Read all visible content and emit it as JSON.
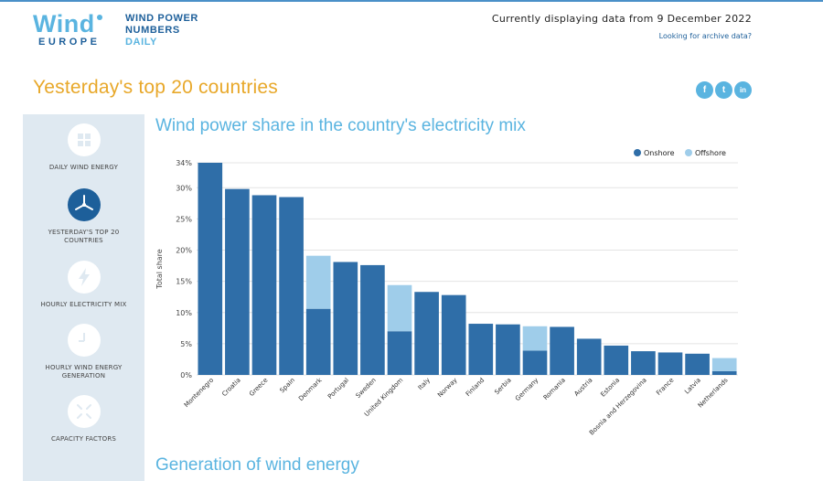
{
  "header": {
    "logo_wind": "Wind",
    "logo_europe": "EUROPE",
    "brand_line1": "WIND POWER",
    "brand_line2": "NUMBERS",
    "brand_line3": "DAILY",
    "displaying": "Currently displaying data from 9 December 2022",
    "archive_link": "Looking for archive data?"
  },
  "page_title": "Yesterday's top 20 countries",
  "social": [
    "f",
    "t",
    "in"
  ],
  "sidebar": {
    "items": [
      {
        "label": "DAILY WIND ENERGY",
        "icon": "grid-icon"
      },
      {
        "label": "YESTERDAY'S TOP 20 COUNTRIES",
        "icon": "turbine-icon",
        "active": true
      },
      {
        "label": "HOURLY ELECTRICITY MIX",
        "icon": "lightning-icon"
      },
      {
        "label": "HOURLY WIND ENERGY GENERATION",
        "icon": "clock-icon"
      },
      {
        "label": "CAPACITY FACTORS",
        "icon": "arrows-icon"
      }
    ]
  },
  "chart_title": "Wind power share in the country's electricity mix",
  "generation_title": "Generation of wind energy",
  "colors": {
    "onshore": "#2f6ea8",
    "offshore": "#9fcdea",
    "accent": "#5ab4e0",
    "title": "#e8a82a"
  },
  "chart_data": {
    "type": "bar",
    "stacked": true,
    "ylabel": "Total share",
    "ylim": [
      0,
      34
    ],
    "yticks": [
      0,
      5,
      10,
      15,
      20,
      25,
      30,
      34
    ],
    "ytick_labels": [
      "0%",
      "5%",
      "10%",
      "15%",
      "20%",
      "25%",
      "30%",
      "34%"
    ],
    "legend_position": "top-right",
    "grid": true,
    "categories": [
      "Montenegro",
      "Croatia",
      "Greece",
      "Spain",
      "Denmark",
      "Portugal",
      "Sweden",
      "United Kingdom",
      "Italy",
      "Norway",
      "Finland",
      "Serbia",
      "Germany",
      "Romania",
      "Austria",
      "Estonia",
      "Bosnia and Herzegovina",
      "France",
      "Latvia",
      "Netherlands"
    ],
    "series": [
      {
        "name": "Onshore",
        "values": [
          34,
          29.8,
          28.8,
          28.5,
          10.6,
          18.1,
          17.6,
          7,
          13.3,
          12.8,
          8.2,
          8.1,
          3.9,
          7.7,
          5.8,
          4.7,
          3.8,
          3.6,
          3.4,
          0.6
        ]
      },
      {
        "name": "Offshore",
        "values": [
          0,
          0,
          0,
          0,
          8.5,
          0,
          0,
          7.4,
          0,
          0,
          0,
          0,
          3.9,
          0,
          0,
          0,
          0,
          0,
          0,
          2.1
        ]
      }
    ]
  }
}
